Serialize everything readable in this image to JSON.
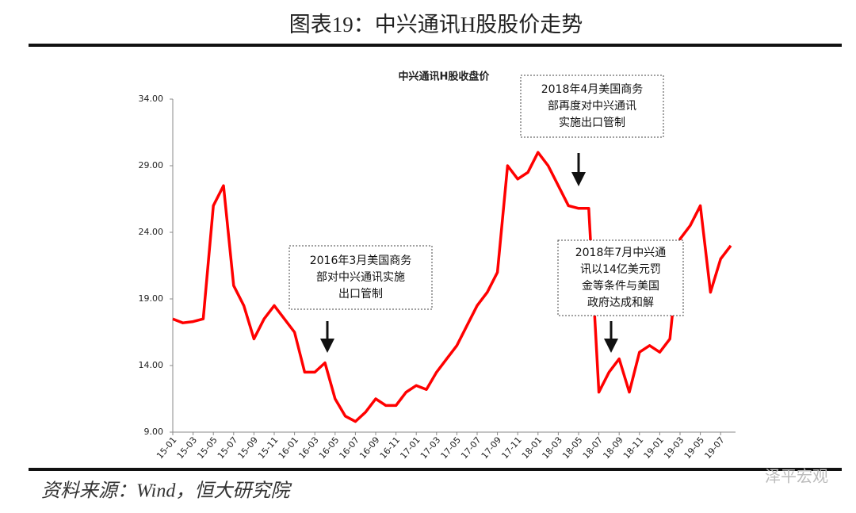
{
  "header": {
    "title": "图表19：中兴通讯H股股价走势"
  },
  "chart_data": {
    "type": "line",
    "title": "中兴通讯H股收盘价",
    "categories": [
      "15-01",
      null,
      "15-03",
      null,
      "15-05",
      null,
      "15-07",
      null,
      "15-09",
      null,
      "15-11",
      null,
      "16-01",
      null,
      "16-03",
      null,
      "16-05",
      null,
      "16-07",
      null,
      "16-09",
      null,
      "16-11",
      null,
      "17-01",
      null,
      "17-03",
      null,
      "17-05",
      null,
      "17-07",
      null,
      "17-09",
      null,
      "17-11",
      null,
      "18-01",
      null,
      "18-03",
      null,
      "18-05",
      null,
      "18-07",
      null,
      "18-09",
      null,
      "18-11",
      null,
      "19-01",
      null,
      "19-03",
      null,
      "19-05",
      null,
      "19-07",
      null
    ],
    "values": [
      17.5,
      17.2,
      17.3,
      17.5,
      26,
      27.5,
      20,
      18.5,
      16,
      17.5,
      18.5,
      17.5,
      16.5,
      13.5,
      13.5,
      14.2,
      11.5,
      10.2,
      9.8,
      10.5,
      11.5,
      11,
      11,
      12,
      12.5,
      12.2,
      13.5,
      14.5,
      15.5,
      17,
      18.5,
      19.5,
      21,
      29,
      28,
      28.5,
      30,
      29,
      27.5,
      26,
      25.8,
      25.8,
      12,
      13.5,
      14.5,
      12,
      15,
      15.5,
      15,
      16,
      23.5,
      24.5,
      26,
      19.5,
      22,
      23
    ],
    "color": "#ff0000",
    "ylim": [
      9,
      34
    ],
    "yticks": [
      {
        "value": 9,
        "label": "9.00"
      },
      {
        "value": 14,
        "label": "14.00"
      },
      {
        "value": 19,
        "label": "19.00"
      },
      {
        "value": 24,
        "label": "24.00"
      },
      {
        "value": 29,
        "label": "29.00"
      },
      {
        "value": 34,
        "label": "34.00"
      }
    ],
    "annotations": [
      {
        "lines": [
          "2016年3月美国商务",
          "部对中兴通讯实施",
          "出口管制"
        ]
      },
      {
        "lines": [
          "2018年4月美国商务",
          "部再度对中兴通讯",
          "实施出口管制"
        ]
      },
      {
        "lines": [
          "2018年7月中兴通",
          "讯以14亿美元罚",
          "金等条件与美国",
          "政府达成和解"
        ]
      }
    ]
  },
  "footer": {
    "source": "资料来源：Wind，恒大研究院",
    "watermark": "泽平宏观"
  }
}
